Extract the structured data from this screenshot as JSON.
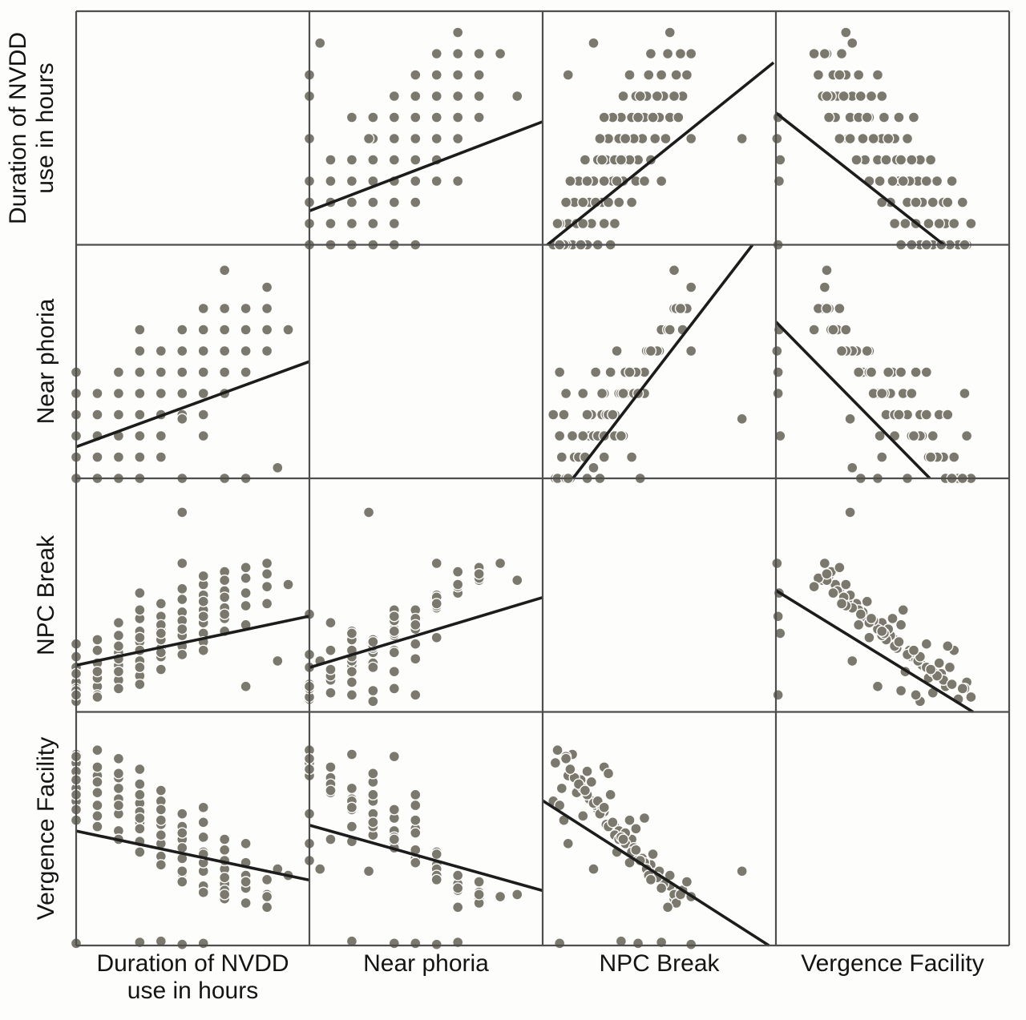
{
  "figure": {
    "background": "#fdfdfb",
    "grid_color": "#4e4e4e",
    "dot_color": "#7b786e",
    "fit_line_color": "#1c1c1c",
    "text_color": "#141414"
  },
  "chart_data": {
    "type": "scatter",
    "subtype": "scatterplot_matrix",
    "title": "",
    "legend": null,
    "grid": "4x4 matrix, diagonal panels empty, no tick labels shown",
    "variables": [
      {
        "key": "duration",
        "label": "Duration of NVDD\nuse in hours"
      },
      {
        "key": "near_phoria",
        "label": "Near phoria"
      },
      {
        "key": "npc_break",
        "label": "NPC Break"
      },
      {
        "key": "vergence_facility",
        "label": "Vergence Facility"
      }
    ],
    "axis_range": [
      0,
      11
    ],
    "observations": [
      [
        0,
        0,
        0.6,
        8.6
      ],
      [
        0,
        1,
        0.9,
        7.4
      ],
      [
        0,
        2,
        1.4,
        9.0
      ],
      [
        0,
        0,
        2.1,
        8.2
      ],
      [
        0,
        3,
        0.5,
        6.8
      ],
      [
        0,
        1,
        1.8,
        7.8
      ],
      [
        0,
        4,
        1.1,
        8.9
      ],
      [
        0,
        2,
        2.6,
        6.4
      ],
      [
        0,
        5,
        3.2,
        7.1
      ],
      [
        0,
        3,
        1.0,
        5.9
      ],
      [
        1,
        0,
        1.2,
        8.0
      ],
      [
        1,
        1,
        1.6,
        7.2
      ],
      [
        1,
        2,
        0.8,
        6.6
      ],
      [
        1,
        3,
        2.3,
        7.7
      ],
      [
        1,
        1,
        2.9,
        8.4
      ],
      [
        1,
        4,
        1.9,
        6.1
      ],
      [
        1,
        2,
        3.4,
        5.6
      ],
      [
        1,
        0,
        0.7,
        9.2
      ],
      [
        2,
        1,
        1.5,
        7.9
      ],
      [
        2,
        2,
        2.2,
        6.9
      ],
      [
        2,
        3,
        2.8,
        6.2
      ],
      [
        2,
        0,
        1.1,
        8.8
      ],
      [
        2,
        4,
        3.6,
        5.4
      ],
      [
        2,
        2,
        1.9,
        7.4
      ],
      [
        2,
        5,
        2.5,
        6.6
      ],
      [
        2,
        3,
        3.1,
        8.1
      ],
      [
        2,
        1,
        4.2,
        5.0
      ],
      [
        3,
        2,
        2.4,
        6.7
      ],
      [
        3,
        3,
        3.3,
        5.8
      ],
      [
        3,
        1,
        1.7,
        7.6
      ],
      [
        3,
        4,
        2.9,
        6.3
      ],
      [
        3,
        2,
        3.8,
        4.9
      ],
      [
        3,
        5,
        4.4,
        5.5
      ],
      [
        3,
        3,
        2.1,
        7.1
      ],
      [
        3,
        0,
        1.3,
        8.3
      ],
      [
        3,
        6,
        3.5,
        4.4
      ],
      [
        3,
        7,
        5.6,
        0.15
      ],
      [
        3,
        4,
        4.8,
        6.0
      ],
      [
        4,
        3,
        3.0,
        5.7
      ],
      [
        4,
        4,
        3.9,
        4.8
      ],
      [
        4,
        2,
        2.6,
        6.8
      ],
      [
        4,
        5,
        4.5,
        4.2
      ],
      [
        4,
        3,
        3.4,
        5.2
      ],
      [
        4,
        6,
        5.1,
        3.8
      ],
      [
        4,
        4,
        2.8,
        6.4
      ],
      [
        4,
        1,
        2.0,
        7.3
      ],
      [
        4,
        5,
        4.1,
        5.9
      ],
      [
        4,
        2,
        3.7,
        0.2
      ],
      [
        5,
        4,
        3.6,
        5.0
      ],
      [
        5,
        5,
        4.7,
        4.1
      ],
      [
        5,
        3,
        3.1,
        5.6
      ],
      [
        5,
        6,
        5.3,
        3.4
      ],
      [
        5,
        4,
        4.3,
        4.6
      ],
      [
        5,
        0,
        2.7,
        6.2
      ],
      [
        5,
        7,
        5.8,
        3.0
      ],
      [
        5,
        5,
        3.9,
        5.3
      ],
      [
        5,
        2.8,
        9.4,
        3.5
      ],
      [
        5,
        6,
        7.0,
        0.05
      ],
      [
        6,
        5,
        4.2,
        4.4
      ],
      [
        6,
        6,
        5.5,
        3.5
      ],
      [
        6,
        4,
        3.7,
        5.1
      ],
      [
        6,
        7,
        6.0,
        2.8
      ],
      [
        6,
        5,
        4.8,
        3.9
      ],
      [
        6,
        3,
        3.3,
        5.8
      ],
      [
        6,
        6,
        5.2,
        4.3
      ],
      [
        6,
        8,
        6.4,
        2.5
      ],
      [
        6,
        4,
        4.5,
        0.1
      ],
      [
        6,
        2,
        2.9,
        6.5
      ],
      [
        7,
        6,
        4.9,
        3.6
      ],
      [
        7,
        7,
        5.7,
        2.9
      ],
      [
        7,
        5,
        4.4,
        4.5
      ],
      [
        7,
        8,
        6.2,
        2.2
      ],
      [
        7,
        6,
        5.4,
        3.2
      ],
      [
        7,
        4,
        3.8,
        5.0
      ],
      [
        7,
        7,
        6.6,
        2.6
      ],
      [
        7,
        0,
        4.6,
        4.0
      ],
      [
        7,
        9.8,
        6.2,
        2.4
      ],
      [
        8,
        7,
        5.6,
        2.7
      ],
      [
        8,
        8,
        6.3,
        2.0
      ],
      [
        8,
        6,
        5.0,
        3.3
      ],
      [
        8,
        5,
        4.1,
        3.9
      ],
      [
        8,
        8,
        6.8,
        3.0
      ],
      [
        8,
        0,
        1.2,
        4.8
      ],
      [
        9,
        8,
        6.5,
        2.4
      ],
      [
        9,
        7,
        5.9,
        1.8
      ],
      [
        9,
        6,
        5.1,
        3.1
      ],
      [
        9,
        9,
        7.0,
        2.3
      ],
      [
        10,
        7,
        6.0,
        3.3
      ],
      [
        9.5,
        0.5,
        2.4,
        3.6
      ],
      [
        0,
        5,
        0.8,
        0.1
      ]
    ],
    "fit_lines": [
      {
        "row": 0,
        "col": 1,
        "line": [
          0.0,
          0.145,
          1.0,
          0.527
        ]
      },
      {
        "row": 0,
        "col": 2,
        "line": [
          0.02,
          0.0,
          0.99,
          0.78
        ]
      },
      {
        "row": 0,
        "col": 3,
        "line": [
          0.0,
          0.565,
          0.72,
          0.0
        ]
      },
      {
        "row": 1,
        "col": 0,
        "line": [
          0.0,
          0.135,
          1.0,
          0.5
        ]
      },
      {
        "row": 1,
        "col": 2,
        "line": [
          0.13,
          0.0,
          0.9,
          1.0
        ]
      },
      {
        "row": 1,
        "col": 3,
        "line": [
          0.0,
          0.67,
          0.66,
          0.0
        ]
      },
      {
        "row": 2,
        "col": 0,
        "line": [
          0.0,
          0.2,
          1.0,
          0.41
        ]
      },
      {
        "row": 2,
        "col": 1,
        "line": [
          0.0,
          0.19,
          1.0,
          0.49
        ]
      },
      {
        "row": 2,
        "col": 3,
        "line": [
          0.0,
          0.52,
          0.845,
          0.0
        ]
      },
      {
        "row": 3,
        "col": 0,
        "line": [
          0.0,
          0.49,
          1.0,
          0.28
        ]
      },
      {
        "row": 3,
        "col": 1,
        "line": [
          0.0,
          0.515,
          1.0,
          0.235
        ]
      },
      {
        "row": 3,
        "col": 2,
        "line": [
          0.0,
          0.62,
          0.97,
          0.0
        ]
      }
    ]
  }
}
